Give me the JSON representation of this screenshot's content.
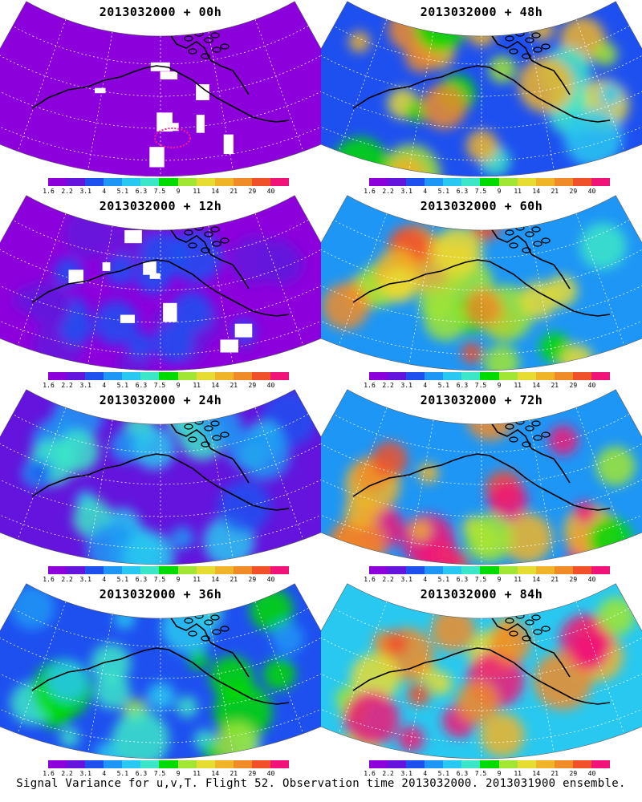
{
  "panels": [
    {
      "title": "2013032000 + 00h",
      "level": 0.05,
      "track": true
    },
    {
      "title": "2013032000 + 12h",
      "level": 0.15,
      "track": false
    },
    {
      "title": "2013032000 + 24h",
      "level": 0.32,
      "track": false
    },
    {
      "title": "2013032000 + 36h",
      "level": 0.45,
      "track": false
    },
    {
      "title": "2013032000 + 48h",
      "level": 0.62,
      "track": false
    },
    {
      "title": "2013032000 + 60h",
      "level": 0.7,
      "track": false
    },
    {
      "title": "2013032000 + 72h",
      "level": 0.8,
      "track": false
    },
    {
      "title": "2013032000 + 84h",
      "level": 0.9,
      "track": false
    }
  ],
  "colorbar": {
    "ticks": [
      "1.6",
      "2.2",
      "3.1",
      "4",
      "5.1",
      "6.3",
      "7.5",
      "9",
      "11",
      "14",
      "21",
      "29",
      "40"
    ],
    "colors": [
      "#8c00dc",
      "#6414dc",
      "#1e50f0",
      "#1e96f5",
      "#28c8f0",
      "#3ce6c8",
      "#00dc00",
      "#a0e632",
      "#e6dc32",
      "#f0b428",
      "#f08c28",
      "#f0502a",
      "#f01478"
    ]
  },
  "caption": "Signal Variance for u,v,T. Flight 52. Observation time 2013032000. 2013031900 ensemble."
}
